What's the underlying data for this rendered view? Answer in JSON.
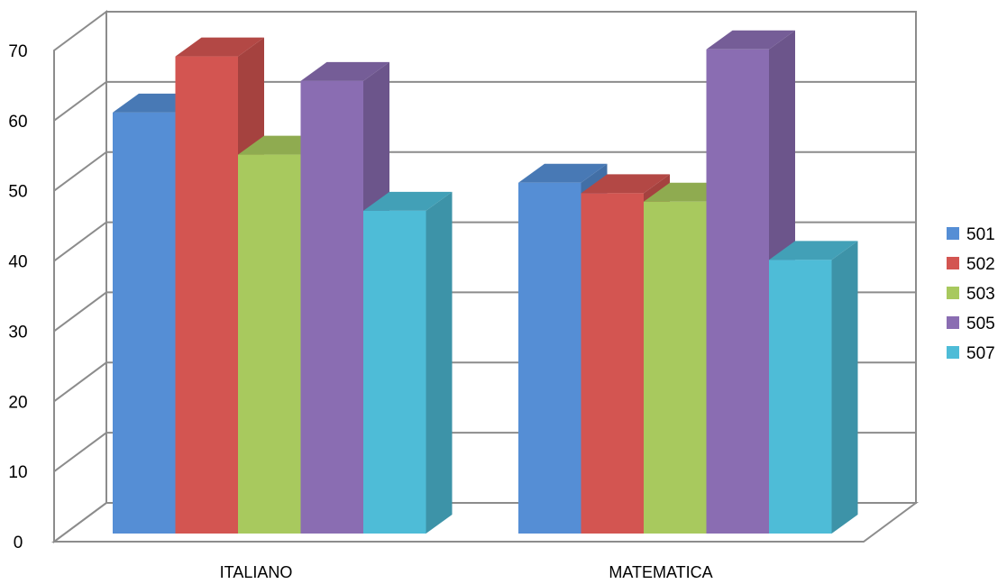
{
  "chart_data": {
    "type": "bar",
    "style": "3d-clustered-column",
    "categories": [
      "ITALIANO",
      "MATEMATICA"
    ],
    "series": [
      {
        "name": "501",
        "color": "#558ED5",
        "values": [
          60,
          50
        ]
      },
      {
        "name": "502",
        "color": "#D35551",
        "values": [
          68,
          48.5
        ]
      },
      {
        "name": "503",
        "color": "#A8C95E",
        "values": [
          54,
          47.3
        ]
      },
      {
        "name": "505",
        "color": "#8A6DB2",
        "values": [
          64.5,
          69
        ]
      },
      {
        "name": "507",
        "color": "#4EBCD7",
        "values": [
          46,
          39
        ]
      }
    ],
    "y_ticks": [
      "0",
      "10",
      "20",
      "30",
      "40",
      "50",
      "60",
      "70"
    ],
    "ylim": [
      0,
      70
    ],
    "grid": true,
    "legend": "right"
  }
}
